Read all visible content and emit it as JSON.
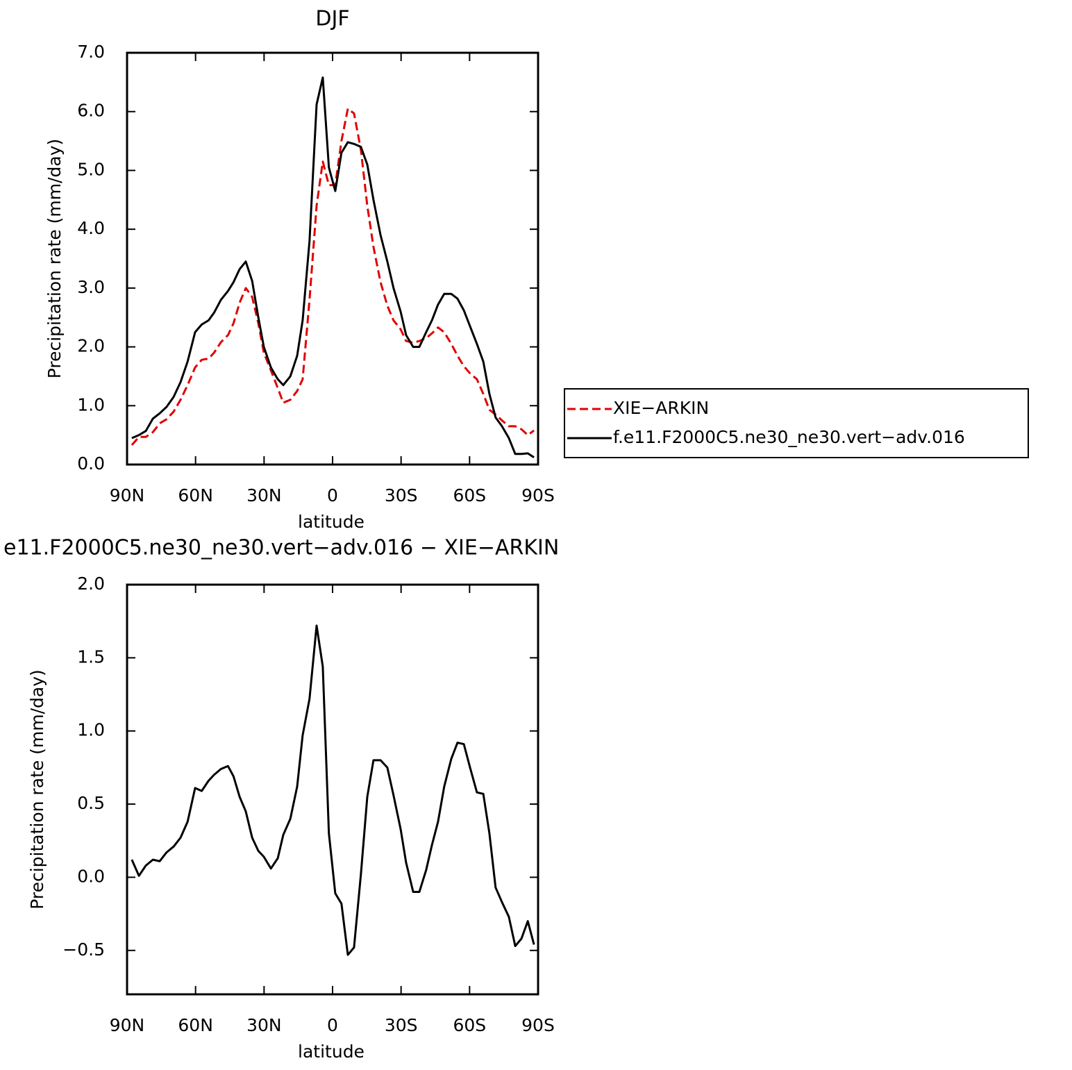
{
  "chart_data": [
    {
      "type": "line",
      "title": "DJF",
      "xlabel": "latitude",
      "ylabel": "Precipitation rate (mm/day)",
      "x": [
        87.9,
        84.8,
        81.8,
        78.7,
        75.7,
        72.7,
        69.6,
        66.6,
        63.5,
        60.2,
        57.3,
        54.3,
        51.9,
        48.9,
        45.8,
        43.4,
        40.7,
        38.0,
        35.2,
        32.5,
        30.1,
        27.0,
        24.0,
        21.6,
        18.5,
        15.5,
        13.1,
        10.1,
        7.0,
        4.3,
        1.6,
        -1.2,
        -3.9,
        -6.7,
        -9.4,
        -12.4,
        -15.2,
        -17.9,
        -21.0,
        -24.0,
        -26.7,
        -29.8,
        -32.2,
        -35.3,
        -38.0,
        -41.0,
        -43.5,
        -46.2,
        -48.9,
        -52.0,
        -54.7,
        -57.5,
        -60.2,
        -63.2,
        -66.0,
        -68.7,
        -71.4,
        -74.2,
        -77.2,
        -80.0,
        -82.7,
        -85.5,
        -88.2
      ],
      "series": [
        {
          "name": "XIE−ARKIN",
          "color": "#e00000",
          "linestyle": "dashed",
          "values": [
            0.33,
            0.47,
            0.47,
            0.55,
            0.7,
            0.77,
            0.9,
            1.1,
            1.35,
            1.65,
            1.78,
            1.8,
            1.9,
            2.08,
            2.2,
            2.4,
            2.75,
            3.0,
            2.85,
            2.4,
            1.9,
            1.6,
            1.3,
            1.05,
            1.1,
            1.25,
            1.45,
            2.8,
            4.4,
            5.15,
            4.75,
            4.75,
            5.5,
            6.05,
            5.97,
            5.35,
            4.4,
            3.7,
            3.1,
            2.7,
            2.45,
            2.3,
            2.1,
            2.07,
            2.1,
            2.15,
            2.23,
            2.33,
            2.25,
            2.05,
            1.85,
            1.67,
            1.55,
            1.45,
            1.2,
            0.93,
            0.85,
            0.75,
            0.65,
            0.65,
            0.6,
            0.5,
            0.58
          ]
        },
        {
          "name": "f.e11.F2000C5.ne30_ne30.vert−adv.016",
          "color": "#000000",
          "linestyle": "solid",
          "values": [
            0.45,
            0.5,
            0.57,
            0.78,
            0.87,
            0.98,
            1.15,
            1.4,
            1.75,
            2.25,
            2.38,
            2.45,
            2.58,
            2.8,
            2.95,
            3.1,
            3.32,
            3.45,
            3.12,
            2.5,
            2.0,
            1.65,
            1.45,
            1.35,
            1.5,
            1.85,
            2.45,
            3.8,
            6.12,
            6.58,
            5.05,
            4.65,
            5.3,
            5.48,
            5.45,
            5.4,
            5.1,
            4.5,
            3.9,
            3.45,
            3.0,
            2.6,
            2.2,
            2.0,
            2.0,
            2.25,
            2.45,
            2.72,
            2.9,
            2.9,
            2.82,
            2.62,
            2.35,
            2.05,
            1.75,
            1.2,
            0.8,
            0.65,
            0.45,
            0.18,
            0.18,
            0.19,
            0.12
          ]
        }
      ],
      "xlim": [
        90,
        -90
      ],
      "xticks": [
        {
          "value": 90,
          "label": "90N"
        },
        {
          "value": 60,
          "label": "60N"
        },
        {
          "value": 30,
          "label": "30N"
        },
        0,
        {
          "value": -30,
          "label": "30S"
        },
        {
          "value": -60,
          "label": "60S"
        },
        {
          "value": -90,
          "label": "90S"
        }
      ],
      "ylim": [
        0,
        7
      ],
      "yticks": [
        {
          "value": 0,
          "label": "0.0"
        },
        {
          "value": 1,
          "label": "1.0"
        },
        {
          "value": 2,
          "label": "2.0"
        },
        {
          "value": 3,
          "label": "3.0"
        },
        {
          "value": 4,
          "label": "4.0"
        },
        {
          "value": 5,
          "label": "5.0"
        },
        {
          "value": 6,
          "label": "6.0"
        },
        {
          "value": 7,
          "label": "7.0"
        }
      ],
      "legend": "right"
    },
    {
      "type": "line",
      "title": "e11.F2000C5.ne30_ne30.vert−adv.016 − XIE−ARKIN",
      "xlabel": "latitude",
      "ylabel": "Precipitation rate (mm/day)",
      "x": [
        87.9,
        84.8,
        81.8,
        78.7,
        75.7,
        72.7,
        69.6,
        66.6,
        63.5,
        60.2,
        57.3,
        54.3,
        51.9,
        48.9,
        45.8,
        43.4,
        40.7,
        38.0,
        35.2,
        32.5,
        30.1,
        27.0,
        24.0,
        21.6,
        18.5,
        15.5,
        13.1,
        10.1,
        7.0,
        4.3,
        1.6,
        -1.2,
        -3.9,
        -6.7,
        -9.4,
        -12.4,
        -15.2,
        -17.9,
        -21.0,
        -24.0,
        -26.7,
        -29.8,
        -32.2,
        -35.3,
        -38.0,
        -41.0,
        -43.5,
        -46.2,
        -48.9,
        -52.0,
        -54.7,
        -57.5,
        -60.2,
        -63.2,
        -66.0,
        -68.7,
        -71.4,
        -74.2,
        -77.2,
        -80.0,
        -82.7,
        -85.5,
        -88.2
      ],
      "series": [
        {
          "color": "#000000",
          "linestyle": "solid",
          "values": [
            0.12,
            0.01,
            0.08,
            0.12,
            0.11,
            0.17,
            0.21,
            0.27,
            0.38,
            0.61,
            0.59,
            0.66,
            0.7,
            0.74,
            0.76,
            0.69,
            0.55,
            0.45,
            0.27,
            0.18,
            0.14,
            0.06,
            0.13,
            0.29,
            0.4,
            0.62,
            0.97,
            1.22,
            1.72,
            1.44,
            0.3,
            -0.11,
            -0.18,
            -0.53,
            -0.48,
            0.02,
            0.55,
            0.8,
            0.8,
            0.75,
            0.56,
            0.33,
            0.1,
            -0.1,
            -0.1,
            0.05,
            0.22,
            0.38,
            0.62,
            0.81,
            0.92,
            0.91,
            0.75,
            0.58,
            0.57,
            0.3,
            -0.07,
            -0.17,
            -0.27,
            -0.47,
            -0.42,
            -0.3,
            -0.46
          ]
        }
      ],
      "xlim": [
        90,
        -90
      ],
      "xticks": [
        {
          "value": 90,
          "label": "90N"
        },
        {
          "value": 60,
          "label": "60N"
        },
        {
          "value": 30,
          "label": "30N"
        },
        0,
        {
          "value": -30,
          "label": "30S"
        },
        {
          "value": -60,
          "label": "60S"
        },
        {
          "value": -90,
          "label": "90S"
        }
      ],
      "ylim": [
        -0.8,
        2.0
      ],
      "yticks": [
        {
          "value": -0.5,
          "label": "−0.5"
        },
        {
          "value": 0,
          "label": "0.0"
        },
        {
          "value": 0.5,
          "label": "0.5"
        },
        {
          "value": 1,
          "label": "1.0"
        },
        {
          "value": 1.5,
          "label": "1.5"
        },
        {
          "value": 2,
          "label": "2.0"
        }
      ]
    }
  ]
}
